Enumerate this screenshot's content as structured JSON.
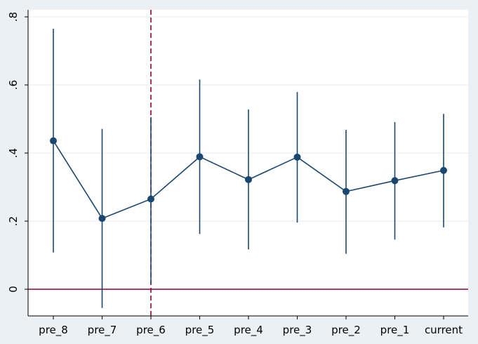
{
  "chart_data": {
    "type": "line",
    "title": "",
    "xlabel": "",
    "ylabel": "",
    "categories": [
      "pre_8",
      "pre_7",
      "pre_6",
      "pre_5",
      "pre_4",
      "pre_3",
      "pre_2",
      "pre_1",
      "current"
    ],
    "ylim": [
      -0.08,
      0.81
    ],
    "yticks": [
      0,
      0.2,
      0.4,
      0.6,
      0.8
    ],
    "ytick_labels": [
      "0",
      ".2",
      ".4",
      ".6",
      ".8"
    ],
    "grid": "horizontal",
    "legend": "none",
    "series": [
      {
        "values": [
          0.436,
          0.208,
          0.265,
          0.389,
          0.322,
          0.388,
          0.287,
          0.319,
          0.349
        ],
        "ci_lower": [
          0.108,
          -0.055,
          0.015,
          0.162,
          0.117,
          0.196,
          0.104,
          0.146,
          0.182
        ],
        "ci_upper": [
          0.765,
          0.471,
          0.506,
          0.616,
          0.528,
          0.579,
          0.468,
          0.491,
          0.515
        ]
      }
    ],
    "reference_lines": {
      "horizontal_y": 0,
      "vertical_category": "pre_6"
    },
    "colors": {
      "series": "#1a476f",
      "reference": "#990033",
      "grid": "#eaf0f3",
      "plot_background": "#ffffff",
      "outer_background": "#eaf0f3"
    }
  }
}
